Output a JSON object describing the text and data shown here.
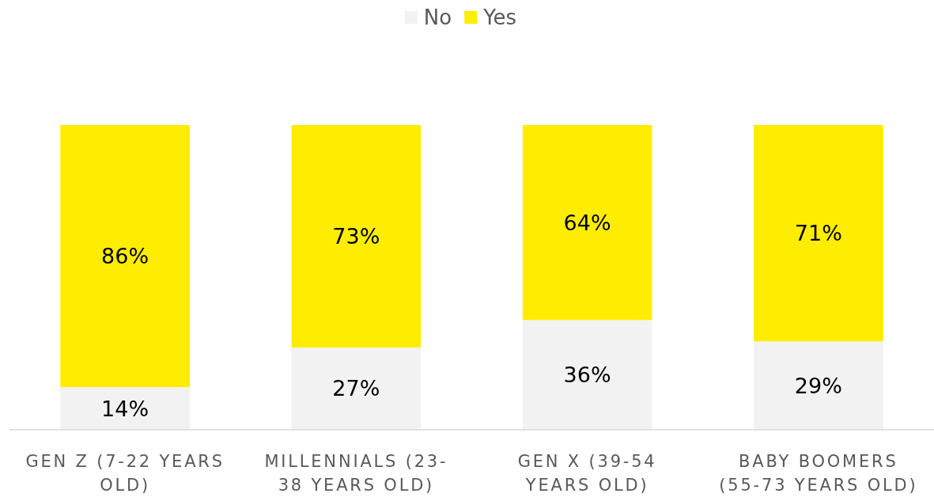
{
  "chart_data": {
    "type": "bar",
    "stacked": true,
    "legend": "top",
    "categories": [
      "GEN Z (7-22 YEARS OLD)",
      "MILLENNIALS (23-38 YEARS OLD)",
      "GEN X (39-54 YEARS OLD)",
      "BABY BOOMERS (55-73 YEARS OLD)"
    ],
    "series": [
      {
        "name": "No",
        "color": "#f2f2f2",
        "values": [
          14,
          27,
          36,
          29
        ],
        "value_labels": [
          "14%",
          "27%",
          "36%",
          "29%"
        ]
      },
      {
        "name": "Yes",
        "color": "#ffed00",
        "values": [
          86,
          73,
          64,
          71
        ],
        "value_labels": [
          "86%",
          "73%",
          "64%",
          "71%"
        ]
      }
    ]
  }
}
